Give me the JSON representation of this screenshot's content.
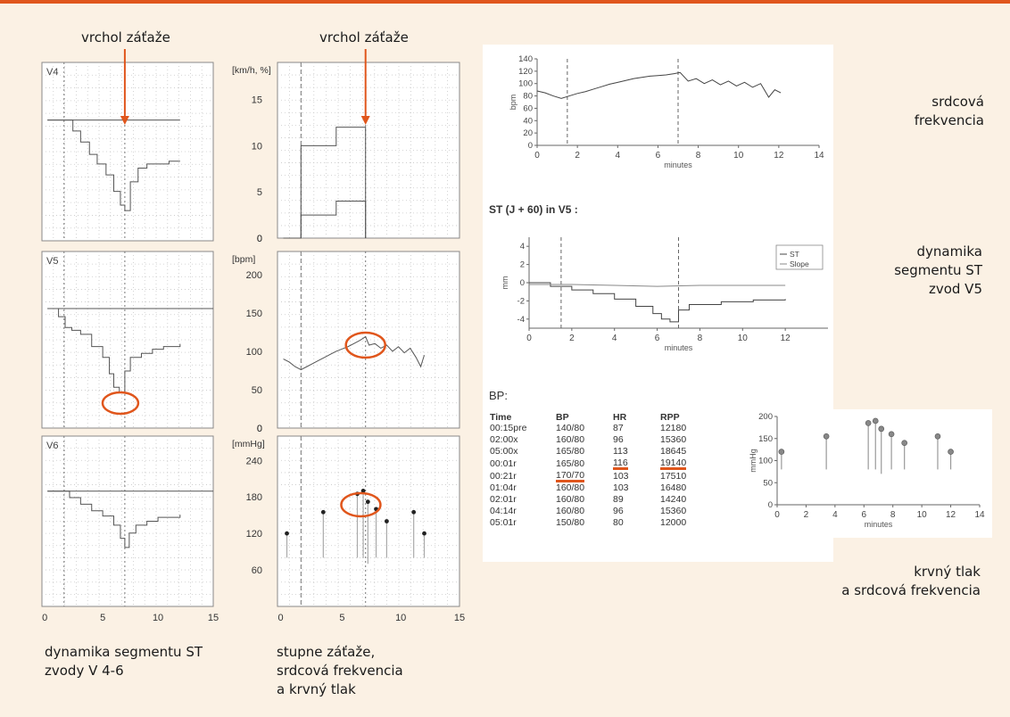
{
  "colors": {
    "accent": "#e0561c",
    "background": "#fbf1e4",
    "panel": "#ffffff",
    "trace": "#555555"
  },
  "annotations": {
    "peak_left": "vrchol záťaže",
    "peak_middle": "vrchol záťaže"
  },
  "captions": {
    "left": [
      "dynamika segmentu ST",
      "zvody  V 4-6"
    ],
    "middle": [
      "stupne záťaže,",
      "srdcová frekvencia",
      "a krvný tlak"
    ],
    "hr": [
      "srdcová",
      "frekvencia"
    ],
    "st": [
      "dynamika",
      "segmentu ST",
      "zvod V5"
    ],
    "bp": [
      "krvný tlak",
      "a srdcová frekvencia"
    ]
  },
  "sections": {
    "st_title": "ST (J + 60) in V5 :",
    "bp_title": "BP:"
  },
  "chart_data": [
    {
      "id": "st_v4",
      "type": "line",
      "panel_label": "V4",
      "series": [
        {
          "x": [
            0,
            12
          ],
          "y": [
            0,
            0
          ]
        },
        {
          "x": [
            0,
            1.5,
            2.3,
            3,
            3.8,
            4.5,
            5.3,
            6,
            6.6,
            7,
            7.5,
            8.2,
            9,
            10,
            11,
            12
          ],
          "y": [
            0,
            0,
            -0.8,
            -1.6,
            -2.5,
            -3.2,
            -4.0,
            -5.2,
            -6.2,
            -6.6,
            -4.5,
            -3.5,
            -3.2,
            -3.2,
            -3.0,
            -3.0
          ]
        }
      ]
    },
    {
      "id": "st_v5",
      "type": "line",
      "panel_label": "V5",
      "series": [
        {
          "x": [
            0,
            15
          ],
          "y": [
            0,
            0
          ]
        },
        {
          "x": [
            0,
            1,
            1.6,
            2.2,
            3,
            4,
            5,
            5.6,
            6,
            6.5,
            7,
            7.5,
            8.5,
            9.5,
            10.5,
            12
          ],
          "y": [
            0,
            -0.6,
            -1.4,
            -1.6,
            -1.9,
            -2.8,
            -3.6,
            -4.8,
            -5.8,
            -6.2,
            -4.6,
            -3.6,
            -3.3,
            -3.0,
            -2.8,
            -2.6
          ]
        }
      ]
    },
    {
      "id": "st_v6",
      "type": "line",
      "panel_label": "V6",
      "x_ticks": [
        0,
        5,
        10,
        15
      ],
      "series": [
        {
          "x": [
            0,
            15
          ],
          "y": [
            0,
            0
          ]
        },
        {
          "x": [
            0,
            2,
            3,
            4,
            5,
            6,
            6.6,
            7,
            7.4,
            8,
            9,
            10,
            11,
            12
          ],
          "y": [
            0,
            -0.5,
            -1.0,
            -1.5,
            -1.9,
            -2.6,
            -3.6,
            -4.3,
            -3.2,
            -2.6,
            -2.3,
            -2.0,
            -2.0,
            -1.8
          ]
        }
      ]
    },
    {
      "id": "treadmill",
      "type": "line",
      "unit_label": "[km/h, %]",
      "y_ticks": [
        0,
        5,
        10,
        15
      ],
      "ylim": [
        0,
        19
      ],
      "series": [
        {
          "x": [
            0,
            1.5,
            1.5,
            4.5,
            4.5,
            7,
            7
          ],
          "y": [
            0,
            0,
            10,
            10,
            12,
            12,
            0
          ]
        },
        {
          "x": [
            0,
            1.5,
            1.5,
            4.5,
            4.5,
            7,
            7
          ],
          "y": [
            0,
            0,
            2.5,
            2.5,
            4,
            4,
            0
          ]
        }
      ]
    },
    {
      "id": "heart_rate",
      "type": "line",
      "unit_label": "[bpm]",
      "y_ticks": [
        0,
        50,
        100,
        150,
        200
      ],
      "ylim": [
        0,
        230
      ],
      "series": [
        {
          "x": [
            0,
            0.5,
            1,
            1.5,
            2,
            2.5,
            3,
            3.5,
            4,
            4.5,
            5,
            5.5,
            6,
            6.5,
            7,
            7.3,
            7.8,
            8.3,
            8.8,
            9.3,
            9.8,
            10.3,
            10.8,
            11.3,
            11.7,
            12
          ],
          "y": [
            90,
            86,
            80,
            76,
            80,
            84,
            88,
            92,
            96,
            100,
            103,
            106,
            110,
            114,
            119,
            108,
            110,
            104,
            108,
            100,
            106,
            98,
            104,
            92,
            80,
            95
          ]
        }
      ]
    },
    {
      "id": "blood_pressure",
      "type": "scatter",
      "unit_label": "[mmHg]",
      "y_ticks": [
        60,
        120,
        180,
        240
      ],
      "ylim": [
        0,
        280
      ],
      "points": [
        {
          "x": 0.3,
          "sys": 120,
          "dia": 80
        },
        {
          "x": 3.4,
          "sys": 155,
          "dia": 80
        },
        {
          "x": 6.3,
          "sys": 185,
          "dia": 80
        },
        {
          "x": 6.8,
          "sys": 190,
          "dia": 80
        },
        {
          "x": 7.2,
          "sys": 172,
          "dia": 70
        },
        {
          "x": 7.9,
          "sys": 160,
          "dia": 80
        },
        {
          "x": 8.8,
          "sys": 140,
          "dia": 80
        },
        {
          "x": 11.1,
          "sys": 155,
          "dia": 80
        },
        {
          "x": 12,
          "sys": 120,
          "dia": 80
        }
      ]
    },
    {
      "id": "hr_trend",
      "type": "line",
      "xlabel": "minutes",
      "ylabel": "bpm",
      "x_ticks": [
        0,
        2,
        4,
        6,
        8,
        10,
        12,
        14
      ],
      "y_ticks": [
        0,
        20,
        40,
        60,
        80,
        100,
        120,
        140
      ],
      "xlim": [
        0,
        14
      ],
      "ylim": [
        0,
        140
      ],
      "series": [
        {
          "x": [
            0,
            0.4,
            0.8,
            1.2,
            1.6,
            2,
            2.4,
            2.8,
            3.2,
            3.6,
            4,
            4.4,
            4.8,
            5.2,
            5.6,
            6,
            6.4,
            6.8,
            7.1,
            7.5,
            7.9,
            8.3,
            8.7,
            9.1,
            9.5,
            9.9,
            10.3,
            10.7,
            11.1,
            11.5,
            11.8,
            12.1
          ],
          "y": [
            88,
            85,
            80,
            76,
            80,
            84,
            87,
            91,
            95,
            99,
            102,
            105,
            108,
            110,
            112,
            113,
            114,
            116,
            118,
            104,
            108,
            100,
            106,
            98,
            104,
            96,
            102,
            94,
            100,
            78,
            90,
            85
          ]
        }
      ]
    },
    {
      "id": "st_v5_trend",
      "type": "line",
      "xlabel": "minutes",
      "ylabel": "mm",
      "x_ticks": [
        0,
        2,
        4,
        6,
        8,
        10,
        12
      ],
      "y_ticks": [
        -4,
        -2,
        0,
        2,
        4
      ],
      "xlim": [
        0,
        14
      ],
      "ylim": [
        -5,
        5
      ],
      "legend": [
        "ST",
        "Slope"
      ],
      "legend_position": "top-right",
      "series": [
        {
          "name": "ST",
          "x": [
            0,
            1,
            2,
            3,
            4,
            5,
            5.8,
            6.2,
            6.6,
            7,
            7.5,
            9,
            10.5,
            12
          ],
          "y": [
            0,
            -0.4,
            -0.8,
            -1.2,
            -1.8,
            -2.6,
            -3.4,
            -4.0,
            -4.3,
            -3.0,
            -2.4,
            -2.1,
            -1.9,
            -1.8
          ]
        },
        {
          "name": "Slope",
          "x": [
            0,
            2,
            4,
            6,
            8,
            10,
            12
          ],
          "y": [
            -0.2,
            -0.2,
            -0.3,
            -0.4,
            -0.3,
            -0.3,
            -0.3
          ]
        }
      ]
    },
    {
      "id": "bp_trend",
      "type": "scatter",
      "xlabel": "minutes",
      "ylabel": "mmHg",
      "x_ticks": [
        0,
        2,
        4,
        6,
        8,
        10,
        12,
        14
      ],
      "y_ticks": [
        0,
        50,
        100,
        150,
        200
      ],
      "xlim": [
        0,
        14
      ],
      "ylim": [
        0,
        200
      ],
      "points": [
        {
          "x": 0.3,
          "sys": 120,
          "dia": 80
        },
        {
          "x": 3.4,
          "sys": 155,
          "dia": 80
        },
        {
          "x": 6.3,
          "sys": 185,
          "dia": 80
        },
        {
          "x": 6.8,
          "sys": 190,
          "dia": 80
        },
        {
          "x": 7.2,
          "sys": 172,
          "dia": 70
        },
        {
          "x": 7.9,
          "sys": 160,
          "dia": 80
        },
        {
          "x": 8.8,
          "sys": 140,
          "dia": 80
        },
        {
          "x": 11.1,
          "sys": 155,
          "dia": 80
        },
        {
          "x": 12,
          "sys": 120,
          "dia": 80
        }
      ]
    },
    {
      "id": "bp_table",
      "type": "table",
      "columns": [
        "Time",
        "BP",
        "HR",
        "RPP"
      ],
      "rows": [
        [
          "00:15pre",
          "140/80",
          "87",
          "12180"
        ],
        [
          "02:00x",
          "160/80",
          "96",
          "15360"
        ],
        [
          "05:00x",
          "165/80",
          "113",
          "18645"
        ],
        [
          "00:01r",
          "165/80",
          "116",
          "19140"
        ],
        [
          "00:21r",
          "170/70",
          "103",
          "17510"
        ],
        [
          "01:04r",
          "160/80",
          "103",
          "16480"
        ],
        [
          "02:01r",
          "160/80",
          "89",
          "14240"
        ],
        [
          "04:14r",
          "160/80",
          "96",
          "15360"
        ],
        [
          "05:01r",
          "150/80",
          "80",
          "12000"
        ]
      ]
    }
  ]
}
